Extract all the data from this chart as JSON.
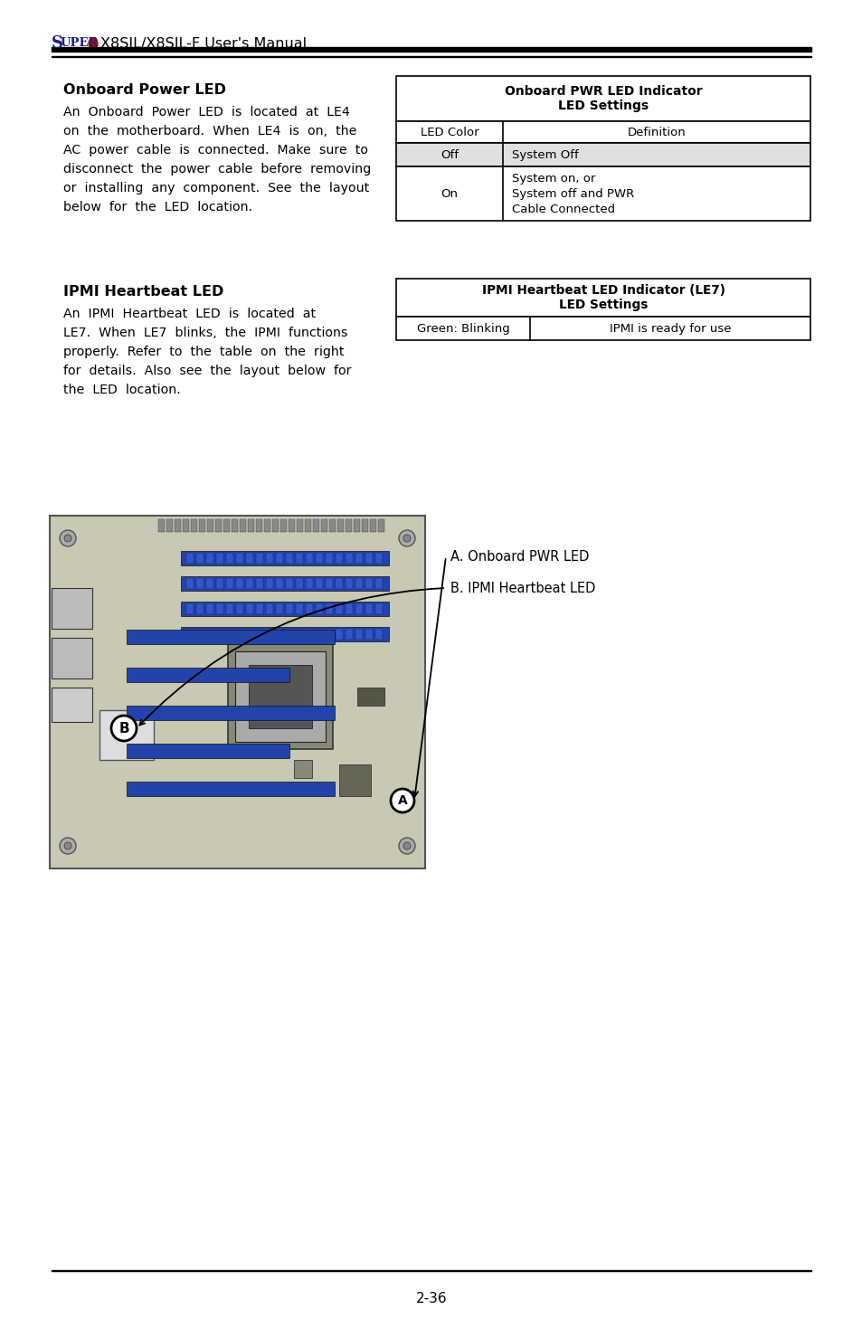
{
  "page_title_super": "SUPER",
  "page_title_bullet": "●",
  "page_title_rest": "X8SIL/X8SIL-F User's Manual",
  "page_number": "2-36",
  "bg_color": "#ffffff",
  "section1_title": "Onboard Power LED",
  "section1_body": [
    "An  Onboard  Power  LED  is  located  at  LE4",
    "on  the  motherboard.  When  LE4  is  on,  the",
    "AC  power  cable  is  connected.  Make  sure  to",
    "disconnect  the  power  cable  before  removing",
    "or  installing  any  component.  See  the  layout",
    "below  for  the  LED  location."
  ],
  "table1_header_line1": "Onboard PWR LED Indicator",
  "table1_header_line2": "LED Settings",
  "table1_col1_header": "LED Color",
  "table1_col2_header": "Definition",
  "table1_rows": [
    {
      "col1": "Off",
      "col2": "System Off",
      "shaded": true
    },
    {
      "col1": "On",
      "col2": "System on, or\nSystem off and PWR\nCable Connected",
      "shaded": false
    }
  ],
  "section2_title": "IPMI Heartbeat LED",
  "section2_body": [
    "An  IPMI  Heartbeat  LED  is  located  at",
    "LE7.  When  LE7  blinks,  the  IPMI  functions",
    "properly.  Refer  to  the  table  on  the  right",
    "for  details.  Also  see  the  layout  below  for",
    "the  LED  location."
  ],
  "table2_header_line1": "IPMI Heartbeat LED Indicator (LE7)",
  "table2_header_line2": "LED Settings",
  "table2_col1": "Green: Blinking",
  "table2_col2": "IPMI is ready for use",
  "label_a": "A. Onboard PWR LED",
  "label_b": "B. IPMI Heartbeat LED",
  "table_shaded_bg": "#e0e0e0",
  "super_color": "#1a237e",
  "bullet_color": "#cc0000",
  "text_color": "#000000"
}
